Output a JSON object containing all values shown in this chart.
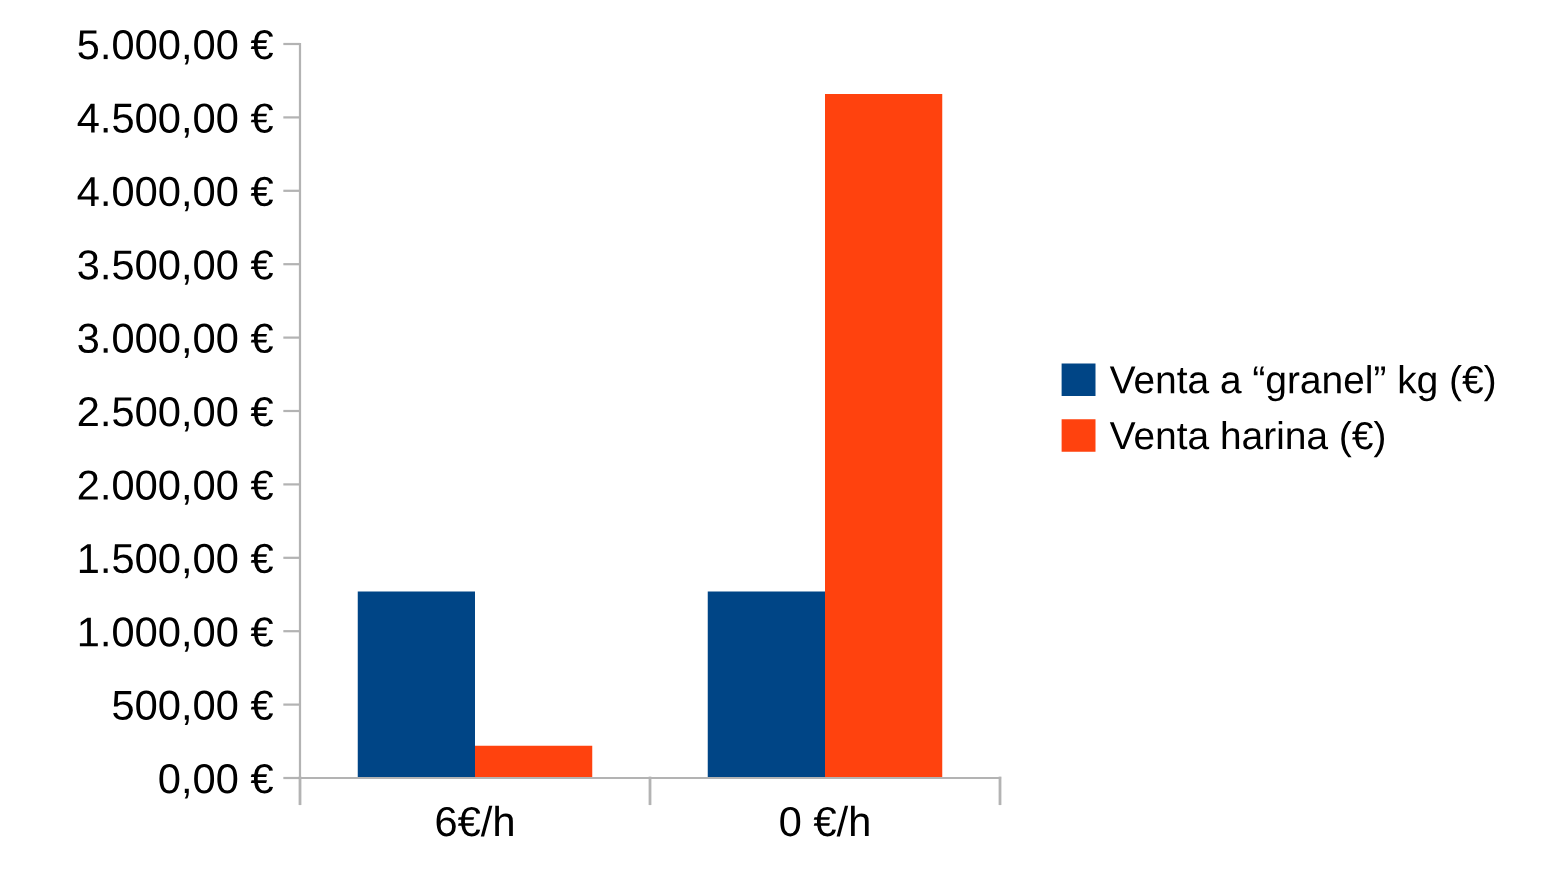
{
  "chart_data": {
    "type": "bar",
    "categories": [
      "6€/h",
      "0 €/h"
    ],
    "series": [
      {
        "name": "Venta a “granel” kg (€)",
        "color": "#004586",
        "values": [
          1270,
          1270
        ]
      },
      {
        "name": "Venta harina (€)",
        "color": "#ff420e",
        "values": [
          220,
          4660
        ]
      }
    ],
    "ylim": [
      0,
      5000
    ],
    "yticks": [
      {
        "value": 0,
        "label": "0,00 €"
      },
      {
        "value": 500,
        "label": "500,00 €"
      },
      {
        "value": 1000,
        "label": "1.000,00 €"
      },
      {
        "value": 1500,
        "label": "1.500,00 €"
      },
      {
        "value": 2000,
        "label": "2.000,00 €"
      },
      {
        "value": 2500,
        "label": "2.500,00 €"
      },
      {
        "value": 3000,
        "label": "3.000,00 €"
      },
      {
        "value": 3500,
        "label": "3.500,00 €"
      },
      {
        "value": 4000,
        "label": "4.000,00 €"
      },
      {
        "value": 4500,
        "label": "4.500,00 €"
      },
      {
        "value": 5000,
        "label": "5.000,00 €"
      }
    ],
    "grid": false,
    "legend": "right"
  }
}
